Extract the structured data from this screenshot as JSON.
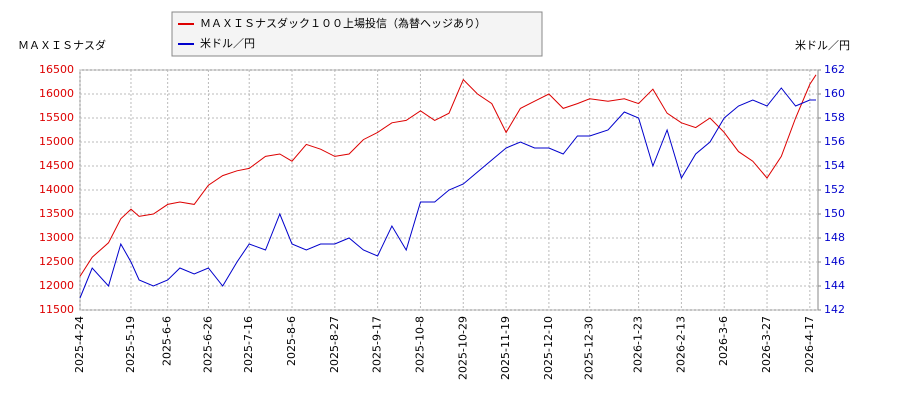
{
  "chart_data": {
    "type": "line",
    "y_label": "ＭＡＸＩＳナスダ",
    "y2_label": "米ドル／円",
    "x": [
      "2025-4-24",
      "2025-4-30",
      "2025-5-8",
      "2025-5-14",
      "2025-5-19",
      "2025-5-23",
      "2025-5-30",
      "2025-6-6",
      "2025-6-12",
      "2025-6-19",
      "2025-6-26",
      "2025-7-3",
      "2025-7-10",
      "2025-7-16",
      "2025-7-24",
      "2025-7-31",
      "2025-8-6",
      "2025-8-13",
      "2025-8-20",
      "2025-8-27",
      "2025-9-3",
      "2025-9-10",
      "2025-9-17",
      "2025-9-24",
      "2025-10-1",
      "2025-10-8",
      "2025-10-15",
      "2025-10-22",
      "2025-10-29",
      "2025-11-5",
      "2025-11-12",
      "2025-11-19",
      "2025-11-26",
      "2025-12-3",
      "2025-12-10",
      "2025-12-17",
      "2025-12-24",
      "2025-12-30",
      "2026-1-8",
      "2026-1-16",
      "2026-1-23",
      "2026-1-30",
      "2026-2-6",
      "2026-2-13",
      "2026-2-20",
      "2026-2-27",
      "2026-3-6",
      "2026-3-13",
      "2026-3-20",
      "2026-3-27",
      "2026-4-3",
      "2026-4-10",
      "2026-4-17",
      "2026-4-20"
    ],
    "series": [
      {
        "name": "ＭＡＸＩＳナスダック１００上場投信（為替ヘッジあり）",
        "color": "#dd0000",
        "values": [
          12200,
          12600,
          12900,
          13400,
          13600,
          13450,
          13500,
          13700,
          13750,
          13700,
          14100,
          14300,
          14400,
          14450,
          14700,
          14750,
          14600,
          14950,
          14850,
          14700,
          14750,
          15050,
          15200,
          15400,
          15450,
          15650,
          15450,
          15600,
          16300,
          16000,
          15800,
          15200,
          15700,
          15850,
          16000,
          15700,
          15800,
          15900,
          15850,
          15900,
          15800,
          16100,
          15600,
          15400,
          15300,
          15500,
          15200,
          14800,
          14600,
          14250,
          14700,
          15500,
          16200,
          16400
        ]
      },
      {
        "name": "米ドル／円",
        "color": "#0000cc",
        "axis": "y2",
        "values": [
          143,
          145.5,
          144,
          147.5,
          146,
          144.5,
          144,
          144.5,
          145.5,
          145,
          145.5,
          144,
          146,
          147.5,
          147,
          150,
          147.5,
          147,
          147.5,
          147.5,
          148,
          147,
          146.5,
          149,
          147,
          151,
          151,
          152,
          152.5,
          153.5,
          154.5,
          155.5,
          156,
          155.5,
          155.5,
          155,
          156.5,
          156.5,
          157,
          158.5,
          158,
          154,
          157,
          153,
          155,
          156,
          158,
          159,
          159.5,
          159,
          160.5,
          159,
          159.5,
          159.5
        ]
      }
    ],
    "xlim": [
      "2025-4-24",
      "2026-4-21"
    ],
    "xticks": [
      "2025-4-24",
      "2025-5-19",
      "2025-6-6",
      "2025-6-26",
      "2025-7-16",
      "2025-8-6",
      "2025-8-27",
      "2025-9-17",
      "2025-10-8",
      "2025-10-29",
      "2025-11-19",
      "2025-12-10",
      "2025-12-30",
      "2026-1-23",
      "2026-2-13",
      "2026-3-6",
      "2026-3-27",
      "2026-4-17"
    ],
    "ylim": [
      11500,
      16500
    ],
    "yticks": [
      11500,
      12000,
      12500,
      13000,
      13500,
      14000,
      14500,
      15000,
      15500,
      16000,
      16500
    ],
    "y2lim": [
      142,
      162
    ],
    "y2ticks": [
      142,
      144,
      146,
      148,
      150,
      152,
      154,
      156,
      158,
      160,
      162
    ],
    "grid": true
  }
}
